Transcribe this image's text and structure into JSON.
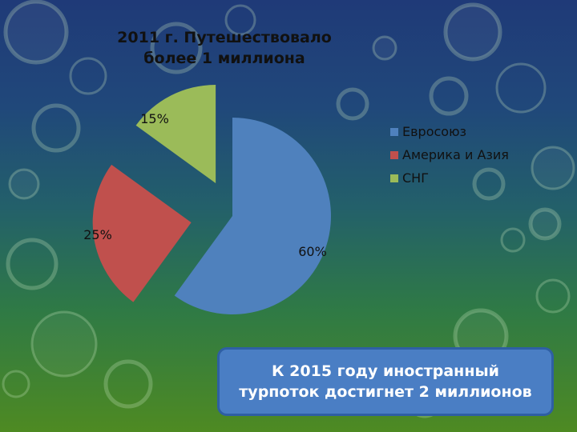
{
  "chart_data": {
    "type": "pie",
    "title": "2011 г. Путешествовало более 1 миллиона",
    "categories": [
      "Евросоюз",
      "Америка и Азия",
      "СНГ"
    ],
    "values": [
      60,
      25,
      15
    ],
    "value_labels": [
      "60%",
      "25%",
      "15%"
    ],
    "colors": [
      "#4f81bd",
      "#c0504d",
      "#9bbb59"
    ],
    "exploded": true,
    "legend_position": "right"
  },
  "callout": {
    "text": "К 2015 году иностранный\nтурпоток достигнет 2 миллионов"
  },
  "theme": {
    "background_top": "#1f3a78",
    "background_bottom": "#4e8a22",
    "callout_fill": "#4a7ec4"
  }
}
